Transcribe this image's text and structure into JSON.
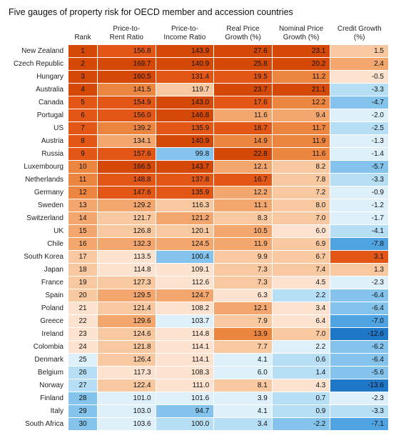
{
  "title": "Five gauges of property risk for OECD member and accession countries",
  "columns": [
    {
      "key": "country",
      "label": ""
    },
    {
      "key": "rank",
      "label": "Rank"
    },
    {
      "key": "rent",
      "label": "Price-to-\nRent Ratio"
    },
    {
      "key": "income",
      "label": "Price-to-\nIncome Ratio"
    },
    {
      "key": "real",
      "label": "Real Price\nGrowth (%)"
    },
    {
      "key": "nominal",
      "label": "Nominal Price\nGrowth (%)"
    },
    {
      "key": "credit",
      "label": "Credit Growth\n(%)"
    }
  ],
  "column_widths": [
    "80px",
    "36px",
    "",
    "",
    "",
    "",
    ""
  ],
  "palette": {
    "b5": "#1f77c8",
    "b4": "#4ea3e0",
    "b3": "#84c4ec",
    "b2": "#b6def4",
    "b1": "#def0fa",
    "o1": "#fde3cf",
    "o2": "#f8c8a0",
    "o3": "#f3a76e",
    "o4": "#ec8540",
    "o5": "#e35716",
    "o6": "#d44808"
  },
  "rows": [
    {
      "country": "New Zealand",
      "rank": 1,
      "rent": 156.8,
      "income": 143.9,
      "real": 27.6,
      "nominal": 23.1,
      "credit": 1.5,
      "c": {
        "rank": "o6",
        "rent": "o5",
        "income": "o6",
        "real": "o6",
        "nominal": "o6",
        "credit": "o2"
      }
    },
    {
      "country": "Czech Republic",
      "rank": 2,
      "rent": 169.7,
      "income": 140.9,
      "real": 25.8,
      "nominal": 20.2,
      "credit": 2.4,
      "c": {
        "rank": "o6",
        "rent": "o6",
        "income": "o6",
        "real": "o6",
        "nominal": "o6",
        "credit": "o3"
      }
    },
    {
      "country": "Hungary",
      "rank": 3,
      "rent": 160.5,
      "income": 131.4,
      "real": 19.5,
      "nominal": 11.2,
      "credit": -0.5,
      "c": {
        "rank": "o6",
        "rent": "o6",
        "income": "o5",
        "real": "o5",
        "nominal": "o4",
        "credit": "o1"
      }
    },
    {
      "country": "Australia",
      "rank": 4,
      "rent": 141.5,
      "income": 119.7,
      "real": 23.7,
      "nominal": 21.1,
      "credit": -3.3,
      "c": {
        "rank": "o6",
        "rent": "o4",
        "income": "o2",
        "real": "o6",
        "nominal": "o6",
        "credit": "b2"
      }
    },
    {
      "country": "Canada",
      "rank": 5,
      "rent": 154.9,
      "income": 143.0,
      "real": 17.6,
      "nominal": 12.2,
      "credit": -4.7,
      "c": {
        "rank": "o5",
        "rent": "o5",
        "income": "o6",
        "real": "o5",
        "nominal": "o4",
        "credit": "b3"
      }
    },
    {
      "country": "Portugal",
      "rank": 6,
      "rent": 156.0,
      "income": 146.8,
      "real": 11.6,
      "nominal": 9.4,
      "credit": -2.0,
      "c": {
        "rank": "o5",
        "rent": "o5",
        "income": "o6",
        "real": "o3",
        "nominal": "o3",
        "credit": "b1"
      }
    },
    {
      "country": "US",
      "rank": 7,
      "rent": 139.2,
      "income": 135.9,
      "real": 18.7,
      "nominal": 11.7,
      "credit": -2.5,
      "c": {
        "rank": "o5",
        "rent": "o4",
        "income": "o5",
        "real": "o5",
        "nominal": "o4",
        "credit": "b2"
      }
    },
    {
      "country": "Austria",
      "rank": 8,
      "rent": 134.1,
      "income": 140.9,
      "real": 14.9,
      "nominal": 11.9,
      "credit": -1.3,
      "c": {
        "rank": "o5",
        "rent": "o3",
        "income": "o6",
        "real": "o4",
        "nominal": "o4",
        "credit": "b1"
      }
    },
    {
      "country": "Russia",
      "rank": 9,
      "rent": 157.6,
      "income": 99.8,
      "real": 22.8,
      "nominal": 11.6,
      "credit": -1.4,
      "c": {
        "rank": "o5",
        "rent": "o5",
        "income": "b3",
        "real": "o6",
        "nominal": "o4",
        "credit": "b1"
      }
    },
    {
      "country": "Luxembourg",
      "rank": 10,
      "rent": 166.5,
      "income": 143.7,
      "real": 12.1,
      "nominal": 8.2,
      "credit": -5.7,
      "c": {
        "rank": "o4",
        "rent": "o6",
        "income": "o6",
        "real": "o3",
        "nominal": "o2",
        "credit": "b3"
      }
    },
    {
      "country": "Netherlands",
      "rank": 11,
      "rent": 148.8,
      "income": 137.8,
      "real": 16.7,
      "nominal": 7.8,
      "credit": -3.3,
      "c": {
        "rank": "o4",
        "rent": "o5",
        "income": "o5",
        "real": "o5",
        "nominal": "o2",
        "credit": "b2"
      }
    },
    {
      "country": "Germany",
      "rank": 12,
      "rent": 147.6,
      "income": 135.9,
      "real": 12.2,
      "nominal": 7.2,
      "credit": -0.9,
      "c": {
        "rank": "o4",
        "rent": "o5",
        "income": "o5",
        "real": "o3",
        "nominal": "o2",
        "credit": "b1"
      }
    },
    {
      "country": "Sweden",
      "rank": 13,
      "rent": 129.2,
      "income": 116.3,
      "real": 11.1,
      "nominal": 8.0,
      "credit": -1.2,
      "c": {
        "rank": "o3",
        "rent": "o3",
        "income": "o2",
        "real": "o3",
        "nominal": "o2",
        "credit": "b1"
      }
    },
    {
      "country": "Switzerland",
      "rank": 14,
      "rent": 121.7,
      "income": 121.2,
      "real": 8.3,
      "nominal": 7.0,
      "credit": -1.7,
      "c": {
        "rank": "o3",
        "rent": "o2",
        "income": "o3",
        "real": "o2",
        "nominal": "o2",
        "credit": "b1"
      }
    },
    {
      "country": "UK",
      "rank": 15,
      "rent": 126.8,
      "income": 120.1,
      "real": 10.5,
      "nominal": 6.0,
      "credit": -4.1,
      "c": {
        "rank": "o3",
        "rent": "o2",
        "income": "o2",
        "real": "o3",
        "nominal": "o1",
        "credit": "b2"
      }
    },
    {
      "country": "Chile",
      "rank": 16,
      "rent": 132.3,
      "income": 124.5,
      "real": 11.9,
      "nominal": 6.9,
      "credit": -7.8,
      "c": {
        "rank": "o3",
        "rent": "o3",
        "income": "o3",
        "real": "o3",
        "nominal": "o2",
        "credit": "b4"
      }
    },
    {
      "country": "South Korea",
      "rank": 17,
      "rent": 113.5,
      "income": 100.4,
      "real": 9.9,
      "nominal": 6.7,
      "credit": 3.1,
      "c": {
        "rank": "o2",
        "rent": "o1",
        "income": "b3",
        "real": "o2",
        "nominal": "o2",
        "credit": "o5"
      }
    },
    {
      "country": "Japan",
      "rank": 18,
      "rent": 114.8,
      "income": 109.1,
      "real": 7.3,
      "nominal": 7.4,
      "credit": 1.3,
      "c": {
        "rank": "o2",
        "rent": "o1",
        "income": "o1",
        "real": "o2",
        "nominal": "o2",
        "credit": "o2"
      }
    },
    {
      "country": "France",
      "rank": 19,
      "rent": 127.3,
      "income": 112.6,
      "real": 7.3,
      "nominal": 4.5,
      "credit": -2.3,
      "c": {
        "rank": "o2",
        "rent": "o2",
        "income": "o1",
        "real": "o2",
        "nominal": "o1",
        "credit": "b1"
      }
    },
    {
      "country": "Spain",
      "rank": 20,
      "rent": 129.5,
      "income": 124.7,
      "real": 6.3,
      "nominal": 2.2,
      "credit": -6.4,
      "c": {
        "rank": "o2",
        "rent": "o3",
        "income": "o3",
        "real": "o1",
        "nominal": "b2",
        "credit": "b3"
      }
    },
    {
      "country": "Poland",
      "rank": 21,
      "rent": 121.4,
      "income": 108.2,
      "real": 12.1,
      "nominal": 3.4,
      "credit": -6.4,
      "c": {
        "rank": "o1",
        "rent": "o2",
        "income": "o1",
        "real": "o3",
        "nominal": "o1",
        "credit": "b3"
      }
    },
    {
      "country": "Greece",
      "rank": 22,
      "rent": 129.6,
      "income": 103.7,
      "real": 7.9,
      "nominal": 6.4,
      "credit": -7.0,
      "c": {
        "rank": "o1",
        "rent": "o3",
        "income": "b1",
        "real": "o2",
        "nominal": "o1",
        "credit": "b4"
      }
    },
    {
      "country": "Ireland",
      "rank": 23,
      "rent": 124.6,
      "income": 114.8,
      "real": 13.9,
      "nominal": 7.0,
      "credit": -12.6,
      "c": {
        "rank": "o1",
        "rent": "o2",
        "income": "o1",
        "real": "o4",
        "nominal": "o2",
        "credit": "b5"
      }
    },
    {
      "country": "Colombia",
      "rank": 24,
      "rent": 121.8,
      "income": 114.1,
      "real": 7.7,
      "nominal": 2.2,
      "credit": -6.2,
      "c": {
        "rank": "o1",
        "rent": "o2",
        "income": "o1",
        "real": "o2",
        "nominal": "b1",
        "credit": "b3"
      }
    },
    {
      "country": "Denmark",
      "rank": 25,
      "rent": 126.4,
      "income": 114.1,
      "real": 4.1,
      "nominal": 0.6,
      "credit": -6.4,
      "c": {
        "rank": "b1",
        "rent": "o2",
        "income": "o1",
        "real": "b1",
        "nominal": "b2",
        "credit": "b3"
      }
    },
    {
      "country": "Belgium",
      "rank": 26,
      "rent": 117.3,
      "income": 108.3,
      "real": 6.0,
      "nominal": 1.4,
      "credit": -5.6,
      "c": {
        "rank": "b2",
        "rent": "o1",
        "income": "o1",
        "real": "b1",
        "nominal": "b2",
        "credit": "b3"
      }
    },
    {
      "country": "Norway",
      "rank": 27,
      "rent": 122.4,
      "income": 111.0,
      "real": 8.1,
      "nominal": 4.3,
      "credit": -13.6,
      "c": {
        "rank": "b2",
        "rent": "o2",
        "income": "o1",
        "real": "o2",
        "nominal": "o1",
        "credit": "b5"
      }
    },
    {
      "country": "Finland",
      "rank": 28,
      "rent": 101.0,
      "income": 101.6,
      "real": 3.9,
      "nominal": 0.7,
      "credit": -2.3,
      "c": {
        "rank": "b3",
        "rent": "b1",
        "income": "b1",
        "real": "b1",
        "nominal": "b2",
        "credit": "b1"
      }
    },
    {
      "country": "Italy",
      "rank": 29,
      "rent": 103.0,
      "income": 94.7,
      "real": 4.1,
      "nominal": 0.9,
      "credit": -3.3,
      "c": {
        "rank": "b3",
        "rent": "b1",
        "income": "b3",
        "real": "b1",
        "nominal": "b2",
        "credit": "b2"
      }
    },
    {
      "country": "South Africa",
      "rank": 30,
      "rent": 103.6,
      "income": 100.0,
      "real": 3.4,
      "nominal": -2.2,
      "credit": -7.1,
      "c": {
        "rank": "b3",
        "rent": "b1",
        "income": "b2",
        "real": "b2",
        "nominal": "b3",
        "credit": "b4"
      }
    }
  ],
  "decimals": {
    "rank": 0,
    "rent": 1,
    "income": 1,
    "real": 1,
    "nominal": 1,
    "credit": 1
  },
  "font": {
    "title_size": "12.5px",
    "cell_size": "10px"
  }
}
